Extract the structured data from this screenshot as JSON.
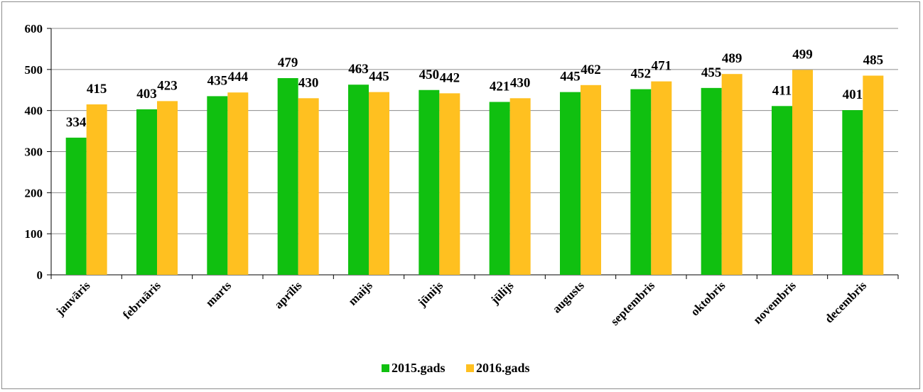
{
  "chart_data": {
    "type": "bar",
    "categories": [
      "janvāris",
      "februāris",
      "marts",
      "aprīlis",
      "maijs",
      "jūnijs",
      "jūlijs",
      "augusts",
      "septembris",
      "oktobris",
      "novembris",
      "decembris"
    ],
    "series": [
      {
        "name": "2015.gads",
        "color": "#10c010",
        "values": [
          334,
          403,
          435,
          479,
          463,
          450,
          421,
          445,
          452,
          455,
          411,
          401
        ]
      },
      {
        "name": "2016.gads",
        "color": "#ffc020",
        "values": [
          415,
          423,
          444,
          430,
          445,
          442,
          430,
          462,
          471,
          489,
          499,
          485
        ]
      }
    ],
    "yticks": [
      0,
      100,
      200,
      300,
      400,
      500,
      600
    ],
    "ylim": [
      0,
      600
    ],
    "grid": true,
    "legend": "bottom",
    "title": "",
    "xlabel": "",
    "ylabel": ""
  }
}
